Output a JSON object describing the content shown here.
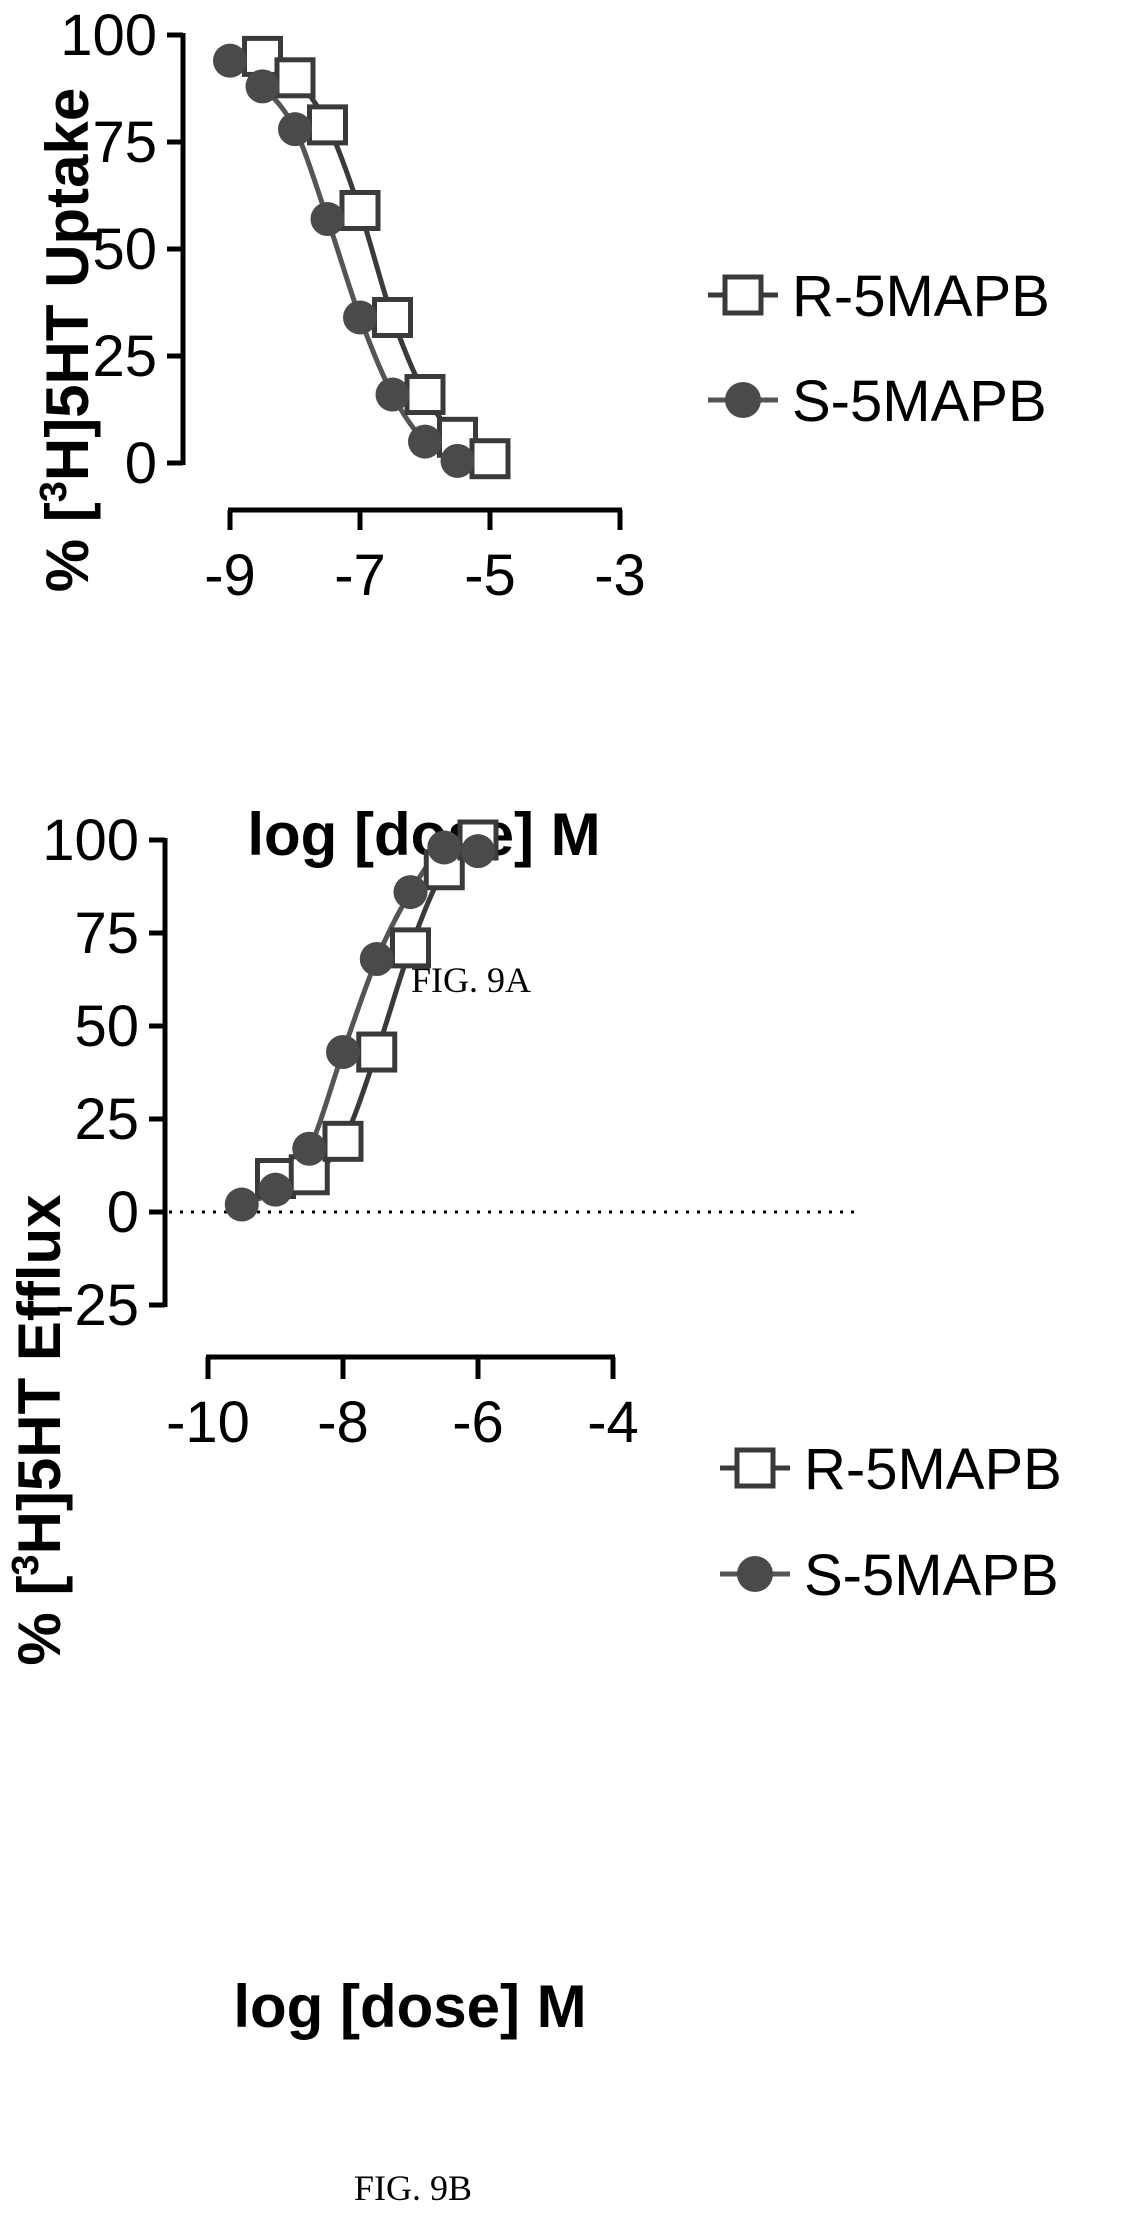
{
  "colors": {
    "axis": "#000000",
    "series_r": "#3a3a3a",
    "series_s": "#555555",
    "marker_s_fill": "#4a4a4a",
    "marker_r_fill": "#ffffff"
  },
  "chart_data": [
    {
      "type": "line",
      "caption": "FIG. 9A",
      "xlabel": "log [dose] M",
      "ylabel_prefix": "% [",
      "ylabel_sup": "3",
      "ylabel_suffix": "H]5HT Uptake",
      "xlim": [
        -9,
        -3
      ],
      "ylim": [
        0,
        100
      ],
      "xticks": [
        -9,
        -7,
        -5,
        -3
      ],
      "yticks": [
        0,
        25,
        50,
        75,
        100
      ],
      "grid": false,
      "legend_position": "right",
      "series": [
        {
          "name": "R-5MAPB",
          "marker": "open-square",
          "x": [
            -8.5,
            -8.0,
            -7.5,
            -7.0,
            -6.5,
            -6.0,
            -5.5,
            -5.0
          ],
          "y": [
            95,
            90,
            79,
            59,
            34,
            16,
            6,
            1
          ]
        },
        {
          "name": "S-5MAPB",
          "marker": "filled-circle",
          "x": [
            -9.0,
            -8.5,
            -8.0,
            -7.5,
            -7.0,
            -6.5,
            -6.0,
            -5.5
          ],
          "y": [
            94,
            88,
            78,
            57,
            34,
            16,
            5,
            0.5
          ]
        }
      ]
    },
    {
      "type": "line",
      "caption": "FIG. 9B",
      "xlabel": "log [dose] M",
      "ylabel_prefix": "% [",
      "ylabel_sup": "3",
      "ylabel_suffix": "H]5HT Efflux",
      "xlim": [
        -10,
        -4
      ],
      "ylim": [
        -25,
        100
      ],
      "xticks": [
        -10,
        -8,
        -6,
        -4
      ],
      "yticks": [
        -25,
        0,
        25,
        50,
        75,
        100
      ],
      "grid": false,
      "zero_line": "dotted",
      "legend_position": "right",
      "series": [
        {
          "name": "R-5MAPB",
          "marker": "open-square",
          "x": [
            -9.0,
            -8.5,
            -8.0,
            -7.5,
            -7.0,
            -6.5,
            -6.0
          ],
          "y": [
            9,
            10,
            19,
            43,
            71,
            92,
            100
          ]
        },
        {
          "name": "S-5MAPB",
          "marker": "filled-circle",
          "x": [
            -9.5,
            -9.0,
            -8.5,
            -8.0,
            -7.5,
            -7.0,
            -6.5,
            -6.0
          ],
          "y": [
            2,
            6,
            17,
            43,
            68,
            86,
            98,
            97
          ]
        }
      ]
    }
  ]
}
